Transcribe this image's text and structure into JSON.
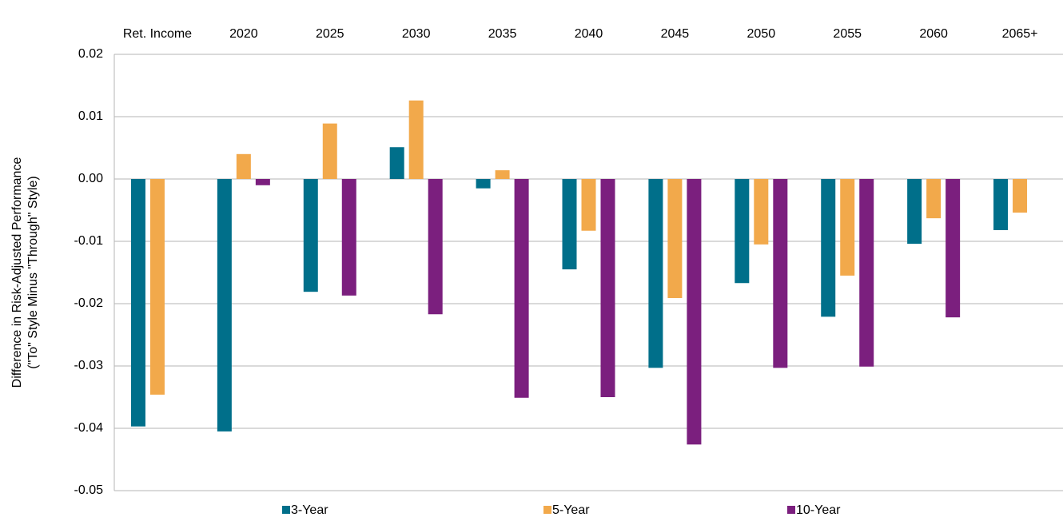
{
  "chart_data": {
    "type": "bar",
    "categories": [
      "Ret. Income",
      "2020",
      "2025",
      "2030",
      "2035",
      "2040",
      "2045",
      "2050",
      "2055",
      "2060",
      "2065+"
    ],
    "series": [
      {
        "name": "3-Year",
        "color": "#006f8a",
        "values": [
          -0.0397,
          -0.0405,
          -0.0181,
          0.0051,
          -0.0015,
          -0.0145,
          -0.0303,
          -0.0167,
          -0.0221,
          -0.0104,
          -0.0082
        ]
      },
      {
        "name": "5-Year",
        "color": "#f2a94b",
        "values": [
          -0.0346,
          0.004,
          0.0089,
          0.0126,
          0.0014,
          -0.0083,
          -0.0191,
          -0.0105,
          -0.0155,
          -0.0063,
          -0.0054
        ]
      },
      {
        "name": "10-Year",
        "color": "#7b1f7e",
        "values": [
          null,
          -0.001,
          -0.0187,
          -0.0217,
          -0.0351,
          -0.035,
          -0.0426,
          -0.0303,
          -0.0301,
          -0.0222,
          null
        ]
      }
    ],
    "ylabel": [
      "Difference in Risk-Adjusted Performance",
      "(\"To\" Style Minus \"Through\" Style)"
    ],
    "ylim": [
      -0.05,
      0.02
    ],
    "yticks": [
      0.02,
      0.01,
      {
        "value": 0,
        "label": "0.00"
      },
      -0.01,
      -0.02,
      -0.03,
      -0.04,
      -0.05
    ],
    "grid": true,
    "legend": "bottom"
  }
}
